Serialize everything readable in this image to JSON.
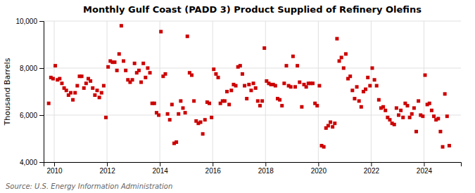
{
  "chart_data": {
    "type": "scatter",
    "title": "Monthly Gulf Coast (PADD 3) Product Supplied of Refinery Olefins",
    "ylabel": "Thousand Barrels",
    "source": "Source: U.S. Energy Information Administration",
    "color": "#cc0000",
    "marker": "square",
    "grid": true,
    "xlim": [
      2009.6,
      2025.4
    ],
    "xticks": [
      2010,
      2012,
      2014,
      2016,
      2018,
      2020,
      2022,
      2024
    ],
    "ylim": [
      4000,
      10000
    ],
    "yticks": [
      {
        "value": 4000,
        "label": "4,000"
      },
      {
        "value": 6000,
        "label": "6,000"
      },
      {
        "value": 8000,
        "label": "8,000"
      },
      {
        "value": 10000,
        "label": "10,000"
      }
    ],
    "x": [
      2009.7916666666667,
      2009.875,
      2009.9583333333333,
      2010.0416666666667,
      2010.125,
      2010.2083333333333,
      2010.2916666666667,
      2010.375,
      2010.4583333333333,
      2010.5416666666667,
      2010.625,
      2010.7083333333333,
      2010.7916666666667,
      2010.875,
      2010.9583333333333,
      2011.0416666666667,
      2011.125,
      2011.2083333333333,
      2011.2916666666667,
      2011.375,
      2011.4583333333333,
      2011.5416666666667,
      2011.625,
      2011.7083333333333,
      2011.7916666666667,
      2011.875,
      2011.9583333333333,
      2012.0416666666667,
      2012.125,
      2012.2083333333333,
      2012.2916666666667,
      2012.375,
      2012.4583333333333,
      2012.5416666666667,
      2012.625,
      2012.7083333333333,
      2012.7916666666667,
      2012.875,
      2012.9583333333333,
      2013.0416666666667,
      2013.125,
      2013.2083333333333,
      2013.2916666666667,
      2013.375,
      2013.4583333333333,
      2013.5416666666667,
      2013.625,
      2013.7083333333333,
      2013.7916666666667,
      2013.875,
      2013.9583333333333,
      2014.0416666666667,
      2014.125,
      2014.2083333333333,
      2014.2916666666667,
      2014.375,
      2014.4583333333333,
      2014.5416666666667,
      2014.625,
      2014.7083333333333,
      2014.7916666666667,
      2014.875,
      2014.9583333333333,
      2015.0416666666667,
      2015.125,
      2015.2083333333333,
      2015.2916666666667,
      2015.375,
      2015.4583333333333,
      2015.5416666666667,
      2015.625,
      2015.7083333333333,
      2015.7916666666667,
      2015.875,
      2015.9583333333333,
      2016.0416666666667,
      2016.125,
      2016.2083333333333,
      2016.2916666666667,
      2016.375,
      2016.4583333333333,
      2016.5416666666667,
      2016.625,
      2016.7083333333333,
      2016.7916666666667,
      2016.875,
      2016.9583333333333,
      2017.0416666666667,
      2017.125,
      2017.2083333333333,
      2017.2916666666667,
      2017.375,
      2017.4583333333333,
      2017.5416666666667,
      2017.625,
      2017.7083333333333,
      2017.7916666666667,
      2017.875,
      2017.9583333333333,
      2018.0416666666667,
      2018.125,
      2018.2083333333333,
      2018.2916666666667,
      2018.375,
      2018.4583333333333,
      2018.5416666666667,
      2018.625,
      2018.7083333333333,
      2018.7916666666667,
      2018.875,
      2018.9583333333333,
      2019.0416666666667,
      2019.125,
      2019.2083333333333,
      2019.2916666666667,
      2019.375,
      2019.4583333333333,
      2019.5416666666667,
      2019.625,
      2019.7083333333333,
      2019.7916666666667,
      2019.875,
      2019.9583333333333,
      2020.0416666666667,
      2020.125,
      2020.2083333333333,
      2020.2916666666667,
      2020.375,
      2020.4583333333333,
      2020.5416666666667,
      2020.625,
      2020.7083333333333,
      2020.7916666666667,
      2020.875,
      2020.9583333333333,
      2021.0416666666667,
      2021.125,
      2021.2083333333333,
      2021.2916666666667,
      2021.375,
      2021.4583333333333,
      2021.5416666666667,
      2021.625,
      2021.7083333333333,
      2021.7916666666667,
      2021.875,
      2021.9583333333333,
      2022.0416666666667,
      2022.125,
      2022.2083333333333,
      2022.2916666666667,
      2022.375,
      2022.4583333333333,
      2022.5416666666667,
      2022.625,
      2022.7083333333333,
      2022.7916666666667,
      2022.875,
      2022.9583333333333,
      2023.0416666666667,
      2023.125,
      2023.2083333333333,
      2023.2916666666667,
      2023.375,
      2023.4583333333333,
      2023.5416666666667,
      2023.625,
      2023.7083333333333,
      2023.7916666666667,
      2023.875,
      2023.9583333333333,
      2024.0416666666667,
      2024.125,
      2024.2083333333333,
      2024.2916666666667,
      2024.375,
      2024.4583333333333,
      2024.5416666666667,
      2024.625,
      2024.7083333333333,
      2024.7916666666667,
      2024.875,
      2024.9583333333333
    ],
    "values": [
      6500,
      7600,
      7550,
      8100,
      7500,
      7550,
      7350,
      7150,
      7050,
      6850,
      6950,
      6650,
      6950,
      7250,
      7650,
      7650,
      7150,
      7350,
      7550,
      7450,
      7150,
      6850,
      7050,
      6750,
      6950,
      7250,
      5900,
      8050,
      8300,
      8250,
      8250,
      7900,
      8600,
      9800,
      8300,
      7900,
      7500,
      7400,
      7500,
      8200,
      7800,
      7900,
      7400,
      8200,
      7600,
      8000,
      7800,
      6500,
      6500,
      6100,
      6000,
      9550,
      7650,
      7750,
      6050,
      5800,
      6450,
      4800,
      4850,
      6050,
      6600,
      6300,
      6100,
      9350,
      7800,
      7700,
      6600,
      5750,
      5650,
      5700,
      5200,
      5800,
      6550,
      6500,
      5900,
      7950,
      7750,
      7600,
      6500,
      6600,
      6600,
      7000,
      6450,
      7050,
      7300,
      7250,
      8050,
      8100,
      7750,
      7250,
      6700,
      7300,
      7050,
      7350,
      7150,
      6600,
      6400,
      6600,
      8850,
      7450,
      7350,
      7300,
      7300,
      7250,
      6700,
      6650,
      6400,
      7350,
      8100,
      7250,
      7200,
      8500,
      7200,
      8100,
      7400,
      6350,
      7300,
      7200,
      7350,
      7350,
      7350,
      6500,
      6400,
      7250,
      4700,
      4650,
      5450,
      5550,
      5700,
      5500,
      5650,
      9250,
      8300,
      8450,
      8000,
      8600,
      7550,
      7650,
      7050,
      6700,
      7200,
      6600,
      6350,
      7000,
      7100,
      7600,
      7250,
      8000,
      7500,
      7250,
      6650,
      6300,
      6350,
      6200,
      5900,
      5800,
      5650,
      5600,
      6300,
      6000,
      6200,
      5900,
      6500,
      6400,
      5900,
      6050,
      6300,
      5300,
      6600,
      6000,
      5950,
      7700,
      6450,
      6500,
      6200,
      5950,
      5800,
      5850,
      5300,
      4650,
      6900,
      5950,
      4700
    ]
  }
}
